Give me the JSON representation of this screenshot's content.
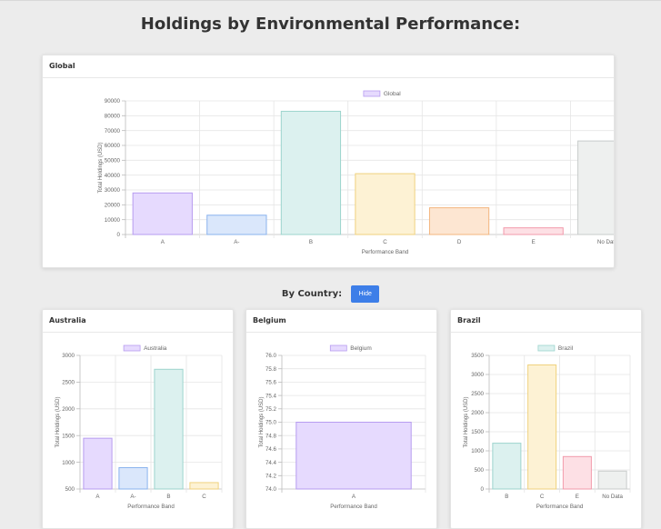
{
  "page": {
    "title": "Holdings by Environmental Performance:"
  },
  "global": {
    "card_title": "Global",
    "chart_data": {
      "type": "bar",
      "legend": "Global",
      "categories": [
        "A",
        "A-",
        "B",
        "C",
        "D",
        "E",
        "No Data"
      ],
      "values": [
        28000,
        13000,
        83000,
        41000,
        18000,
        4500,
        63000
      ],
      "ylim": [
        0,
        90000
      ],
      "yticks": [
        "90000",
        "80000",
        "70000",
        "60000",
        "50000",
        "40000",
        "30000",
        "20000",
        "10000",
        "0"
      ],
      "xlabel": "Performance Band",
      "ylabel": "Total Holdings (USD)"
    }
  },
  "by_country": {
    "title": "By Country:",
    "hide_label": "Hide"
  },
  "countries": [
    {
      "card_title": "Australia",
      "chart_data": {
        "type": "bar",
        "legend": "Australia",
        "categories": [
          "A",
          "A-",
          "B",
          "C"
        ],
        "values": [
          1450,
          900,
          2740,
          620
        ],
        "ylim": [
          500,
          3000
        ],
        "yticks": [
          "3000",
          "2500",
          "2000",
          "1500",
          "1000",
          "500"
        ],
        "xlabel": "Performance Band",
        "ylabel": "Total Holdings (USD)"
      }
    },
    {
      "card_title": "Belgium",
      "chart_data": {
        "type": "bar",
        "legend": "Belgium",
        "categories": [
          "A"
        ],
        "values": [
          75.0
        ],
        "ylim": [
          74.0,
          76.0
        ],
        "yticks": [
          "76.0",
          "75.8",
          "75.6",
          "75.4",
          "75.2",
          "75.0",
          "74.8",
          "74.6",
          "74.4",
          "74.2",
          "74.0"
        ],
        "xlabel": "Performance Band",
        "ylabel": "Total Holdings (USD)"
      }
    },
    {
      "card_title": "Brazil",
      "chart_data": {
        "type": "bar",
        "legend": "Brazil",
        "categories": [
          "B",
          "C",
          "E",
          "No Data"
        ],
        "values": [
          1200,
          3250,
          850,
          470
        ],
        "ylim": [
          0,
          3500
        ],
        "yticks": [
          "3500",
          "3000",
          "2500",
          "2000",
          "1500",
          "1000",
          "500",
          "0"
        ],
        "xlabel": "Performance Band",
        "ylabel": "Total Holdings (USD)"
      }
    }
  ],
  "band_colors": {
    "A": {
      "fill": "#e6dafe",
      "stroke": "#b79cf0"
    },
    "A-": {
      "fill": "#dae7fb",
      "stroke": "#8ab3ee"
    },
    "B": {
      "fill": "#dcf1ef",
      "stroke": "#9cd4cd"
    },
    "C": {
      "fill": "#fdf2d4",
      "stroke": "#f0d27e"
    },
    "D": {
      "fill": "#fde6d2",
      "stroke": "#f3b57e"
    },
    "E": {
      "fill": "#fde0e5",
      "stroke": "#f29aab"
    },
    "No Data": {
      "fill": "#eef0ef",
      "stroke": "#c8cccb"
    }
  },
  "theme": {
    "accent": "#3d7ee8",
    "grid": "#e5e5e5",
    "axis_text": "#666666"
  }
}
